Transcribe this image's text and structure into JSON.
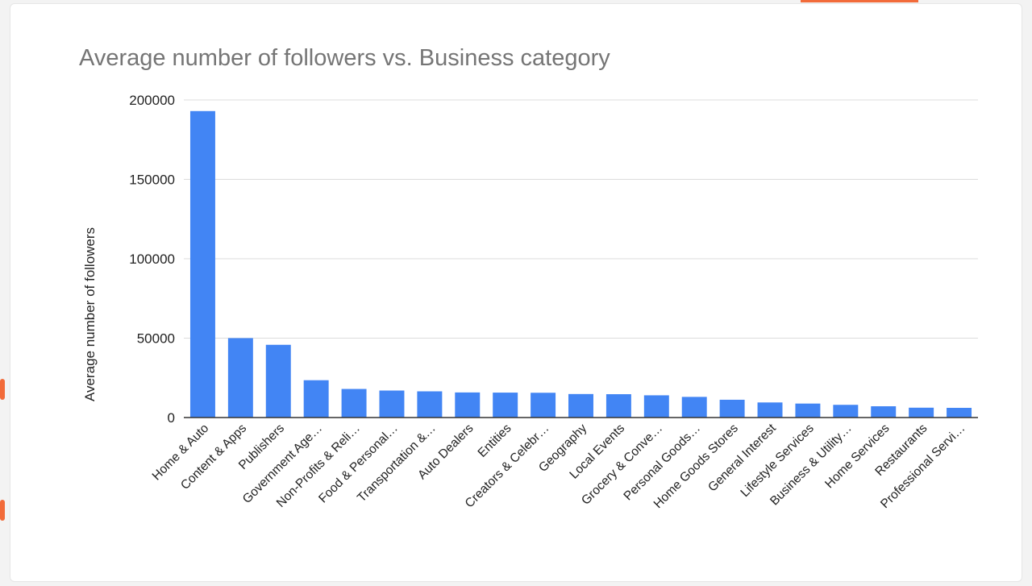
{
  "colors": {
    "bar": "#4285f4",
    "grid": "#dcdcdc",
    "axis": "#333333",
    "accent": "#f26b3a"
  },
  "chart_data": {
    "type": "bar",
    "title": "Average number of followers vs. Business category",
    "xlabel": "",
    "ylabel": "Average number of followers",
    "ylim": [
      0,
      200000
    ],
    "yticks": [
      0,
      50000,
      100000,
      150000,
      200000
    ],
    "grid": true,
    "categories": [
      "Home & Auto",
      "Content & Apps",
      "Publishers",
      "Government Age…",
      "Non-Profits & Reli…",
      "Food & Personal…",
      "Transportation &…",
      "Auto Dealers",
      "Entities",
      "Creators & Celebr…",
      "Geography",
      "Local Events",
      "Grocery & Conve…",
      "Personal Goods…",
      "Home Goods Stores",
      "General Interest",
      "Lifestyle Services",
      "Business & Utility…",
      "Home Services",
      "Restaurants",
      "Professional Servi…"
    ],
    "values": [
      193000,
      50000,
      45800,
      23500,
      18000,
      17000,
      16500,
      15800,
      15700,
      15600,
      14800,
      14700,
      14000,
      13000,
      11200,
      9500,
      8800,
      8000,
      7100,
      6200,
      6100
    ]
  }
}
